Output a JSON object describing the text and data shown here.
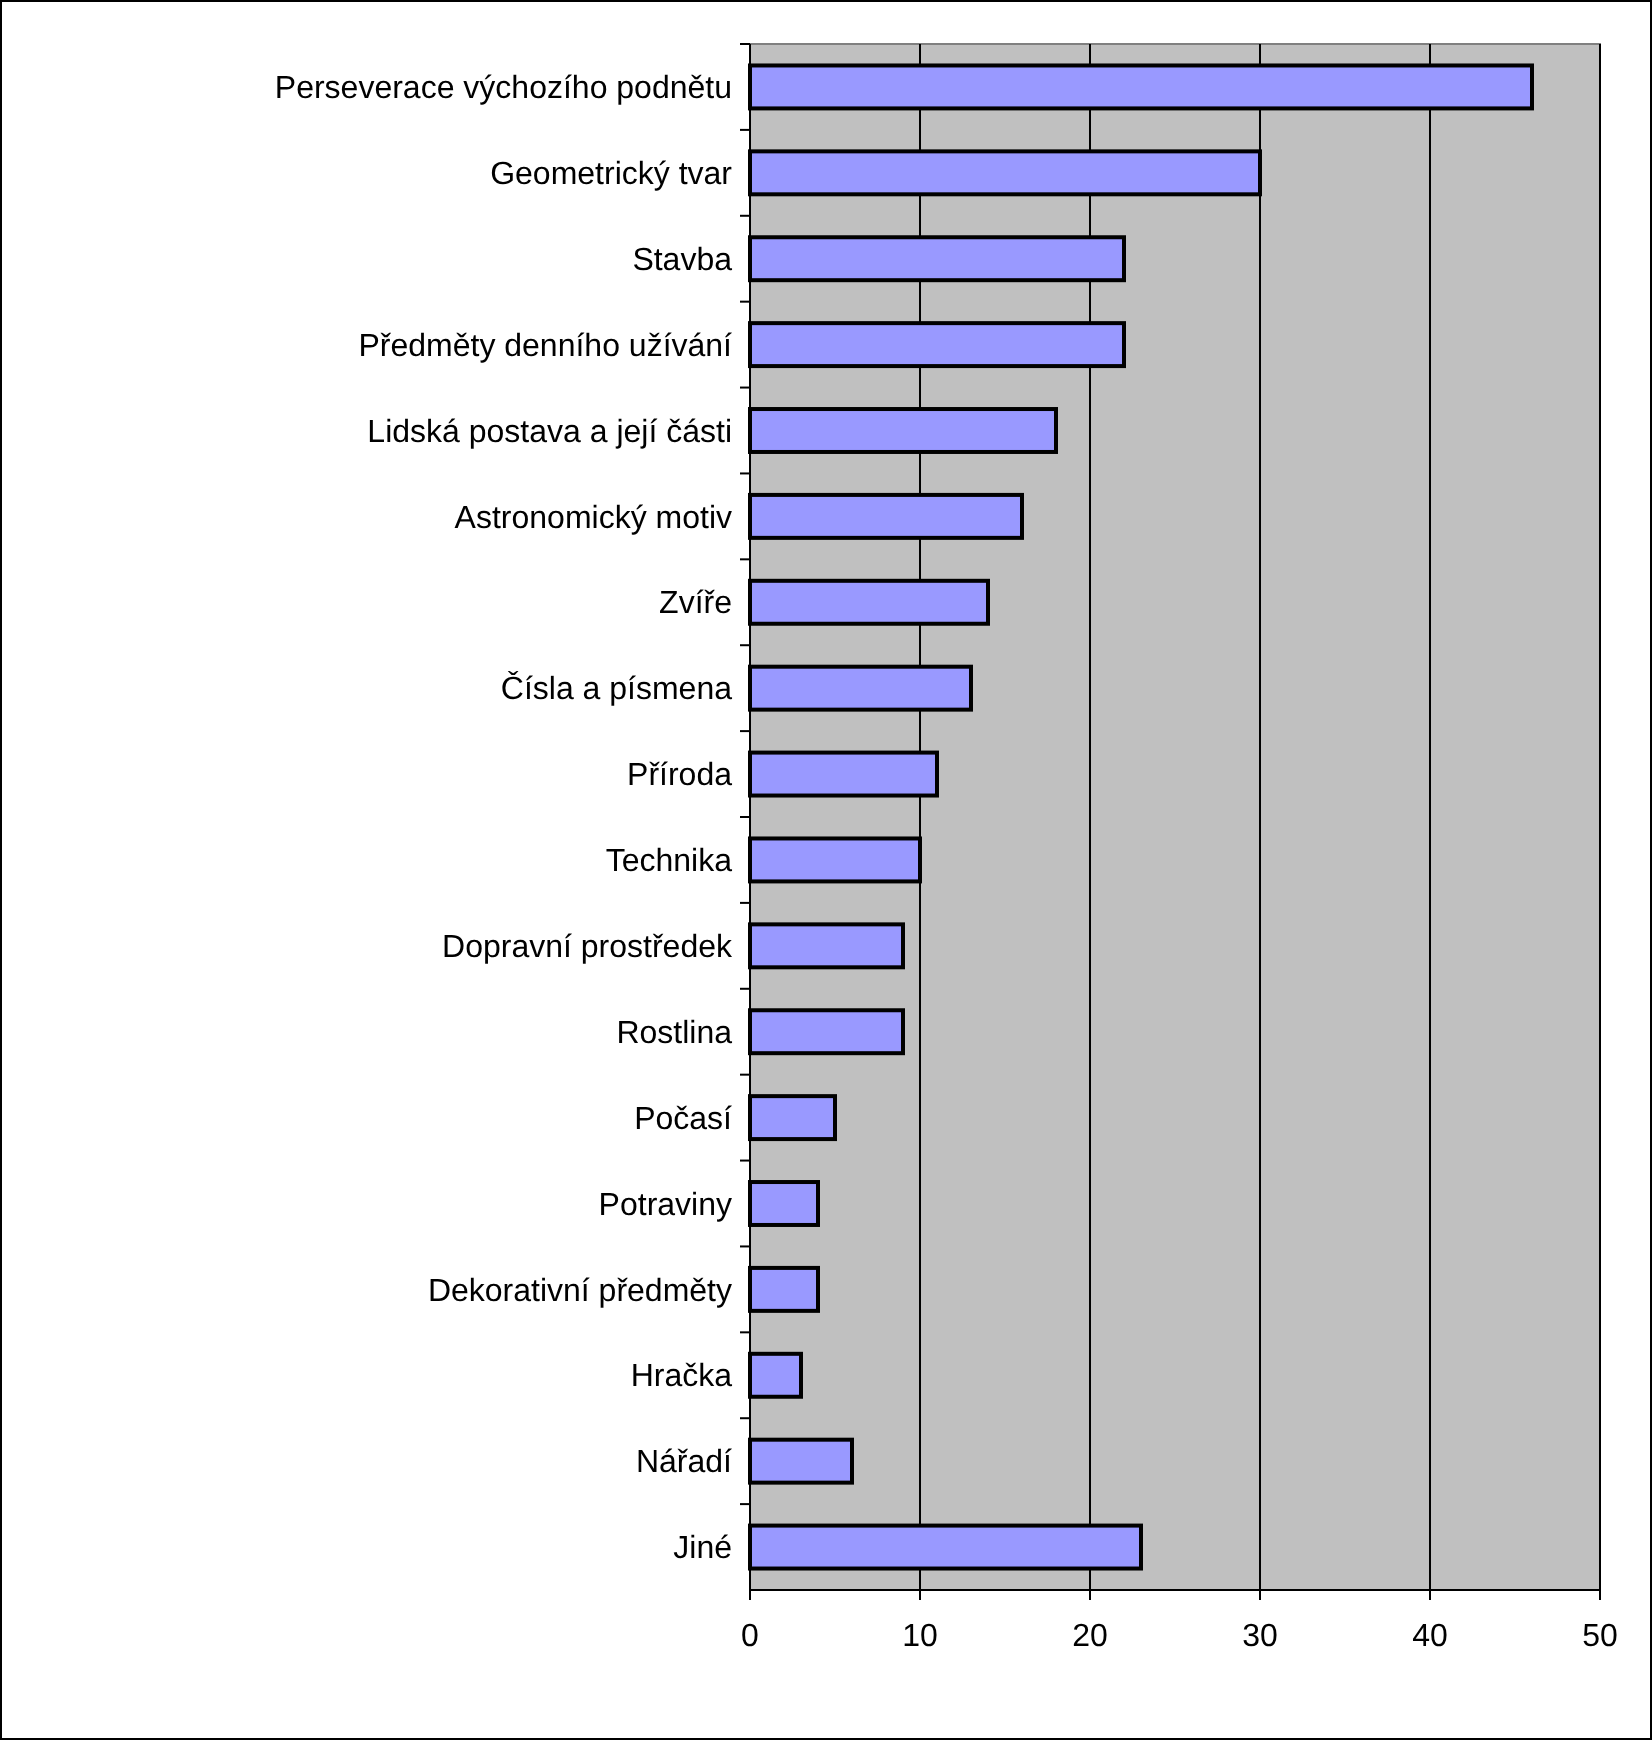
{
  "chart_data": {
    "type": "bar",
    "orientation": "horizontal",
    "categories": [
      "Perseverace výchozího podnětu",
      "Geometrický tvar",
      "Stavba",
      "Předměty denního užívání",
      "Lidská postava a její části",
      "Astronomický motiv",
      "Zvíře",
      "Čísla a písmena",
      "Příroda",
      "Technika",
      "Dopravní prostředek",
      "Rostlina",
      "Počasí",
      "Potraviny",
      "Dekorativní předměty",
      "Hračka",
      "Nářadí",
      "Jiné"
    ],
    "values": [
      46,
      30,
      22,
      22,
      18,
      16,
      14,
      13,
      11,
      10,
      9,
      9,
      5,
      4,
      4,
      3,
      6,
      23
    ],
    "color": "#9999ff",
    "xlim": [
      0,
      50
    ],
    "xticks": [
      0,
      10,
      20,
      30,
      40,
      50
    ],
    "grid": "x"
  }
}
